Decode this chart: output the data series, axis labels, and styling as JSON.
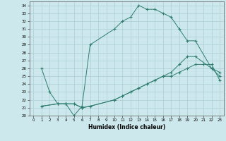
{
  "xlabel": "Humidex (Indice chaleur)",
  "bg_color": "#cce8ec",
  "line_color": "#2e7d6e",
  "grid_color": "#aacdd4",
  "xlim": [
    -0.5,
    23.5
  ],
  "ylim": [
    20,
    34.5
  ],
  "xticks": [
    0,
    1,
    2,
    3,
    4,
    5,
    6,
    7,
    8,
    9,
    10,
    11,
    12,
    13,
    14,
    15,
    16,
    17,
    18,
    19,
    20,
    21,
    22,
    23
  ],
  "yticks": [
    20,
    21,
    22,
    23,
    24,
    25,
    26,
    27,
    28,
    29,
    30,
    31,
    32,
    33,
    34
  ],
  "series1": [
    [
      1,
      26
    ],
    [
      2,
      23
    ],
    [
      3,
      21.5
    ],
    [
      4,
      21.5
    ],
    [
      5,
      20
    ],
    [
      6,
      21.2
    ],
    [
      7,
      29
    ],
    [
      10,
      31
    ],
    [
      11,
      32
    ],
    [
      12,
      32.5
    ],
    [
      13,
      34
    ],
    [
      14,
      33.5
    ],
    [
      15,
      33.5
    ],
    [
      16,
      33
    ],
    [
      17,
      32.5
    ],
    [
      18,
      31
    ],
    [
      19,
      29.5
    ],
    [
      20,
      29.5
    ],
    [
      22,
      26
    ],
    [
      23,
      25
    ]
  ],
  "series2": [
    [
      1,
      21.2
    ],
    [
      3,
      21.5
    ],
    [
      4,
      21.5
    ],
    [
      5,
      21.5
    ],
    [
      6,
      21.0
    ],
    [
      7,
      21.2
    ],
    [
      10,
      22
    ],
    [
      11,
      22.5
    ],
    [
      12,
      23
    ],
    [
      13,
      23.5
    ],
    [
      14,
      24
    ],
    [
      15,
      24.5
    ],
    [
      16,
      25.0
    ],
    [
      17,
      25.5
    ],
    [
      18,
      26.5
    ],
    [
      19,
      27.5
    ],
    [
      20,
      27.5
    ],
    [
      22,
      26
    ],
    [
      23,
      25.5
    ]
  ],
  "series3": [
    [
      1,
      21.2
    ],
    [
      3,
      21.5
    ],
    [
      4,
      21.5
    ],
    [
      5,
      21.5
    ],
    [
      6,
      21.0
    ],
    [
      7,
      21.2
    ],
    [
      10,
      22
    ],
    [
      11,
      22.5
    ],
    [
      12,
      23
    ],
    [
      13,
      23.5
    ],
    [
      14,
      24
    ],
    [
      15,
      24.5
    ],
    [
      16,
      25.0
    ],
    [
      17,
      25.0
    ],
    [
      18,
      25.5
    ],
    [
      19,
      26.0
    ],
    [
      20,
      26.5
    ],
    [
      21,
      26.5
    ],
    [
      22,
      26.5
    ],
    [
      23,
      24.5
    ]
  ]
}
